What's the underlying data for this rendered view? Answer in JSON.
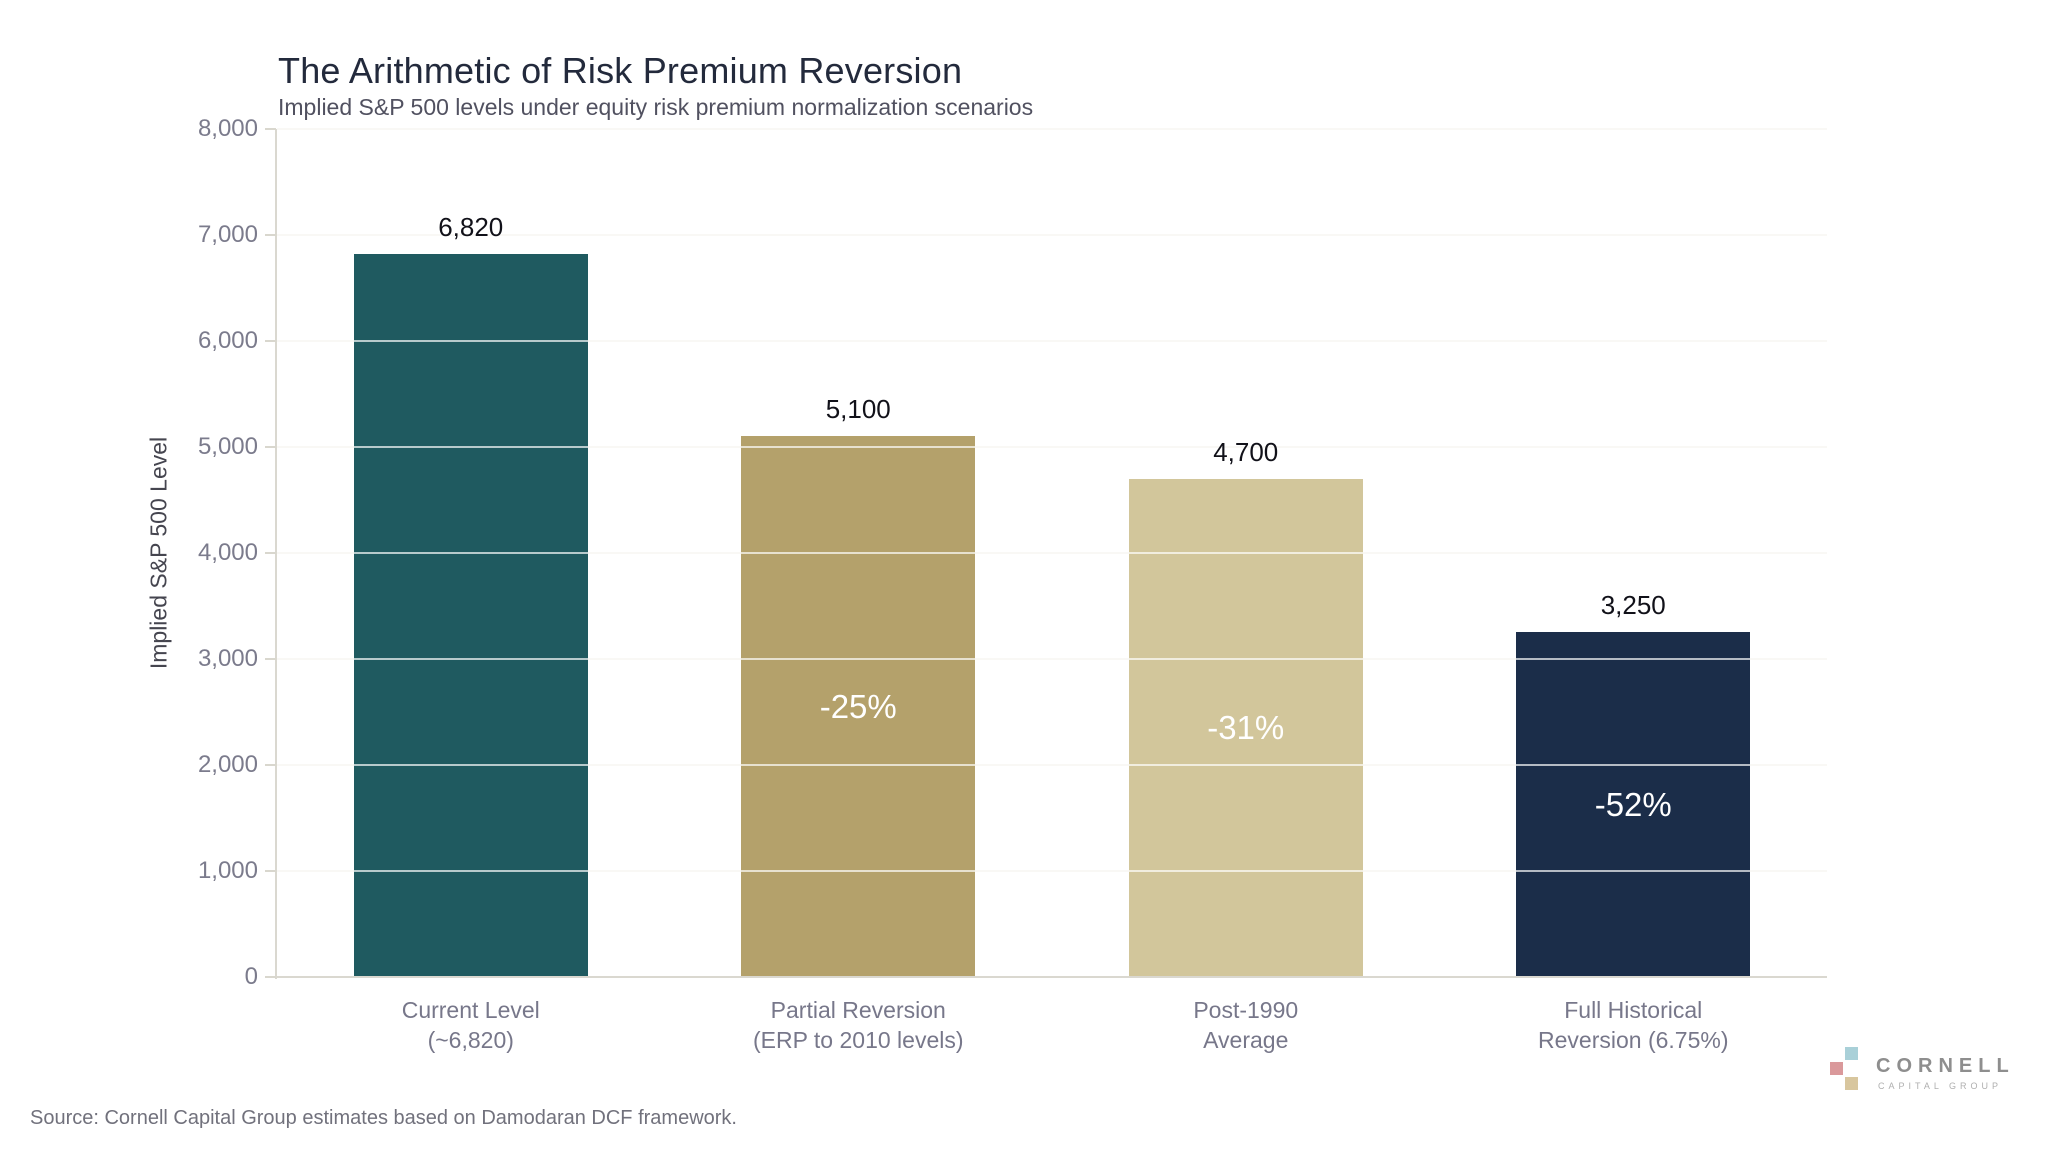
{
  "chart_data": {
    "type": "bar",
    "title": "The Arithmetic of Risk Premium Reversion",
    "subtitle": "Implied S&P 500 levels under equity risk premium normalization scenarios",
    "ylabel": "Implied S&P 500 Level",
    "xlabel": "",
    "ylim": [
      0,
      8000
    ],
    "ytick_interval": 1000,
    "ytick_labels": [
      "0",
      "1,000",
      "2,000",
      "3,000",
      "4,000",
      "5,000",
      "6,000",
      "7,000",
      "8,000"
    ],
    "grid": true,
    "legend": false,
    "categories": [
      [
        "Current Level",
        "(~6,820)"
      ],
      [
        "Partial Reversion",
        "(ERP to 2010 levels)"
      ],
      [
        "Post-1990",
        "Average"
      ],
      [
        "Full Historical",
        "Reversion (6.75%)"
      ]
    ],
    "values": [
      6820,
      5100,
      4700,
      3250
    ],
    "value_labels": [
      "6,820",
      "5,100",
      "4,700",
      "3,250"
    ],
    "pct_change_labels": [
      "",
      "-25%",
      "-31%",
      "-52%"
    ],
    "bar_colors": [
      "#1F5A60",
      "#B4A16B",
      "#D2C69B",
      "#1B2D49"
    ]
  },
  "footer": {
    "source": "Source: Cornell Capital Group estimates based on Damodaran DCF framework."
  },
  "logo": {
    "wordmark": "CORNELL",
    "subtext": "CAPITAL GROUP",
    "square_colors": [
      "#A9D0D8",
      "#DA999B",
      "#D8C69E"
    ]
  }
}
